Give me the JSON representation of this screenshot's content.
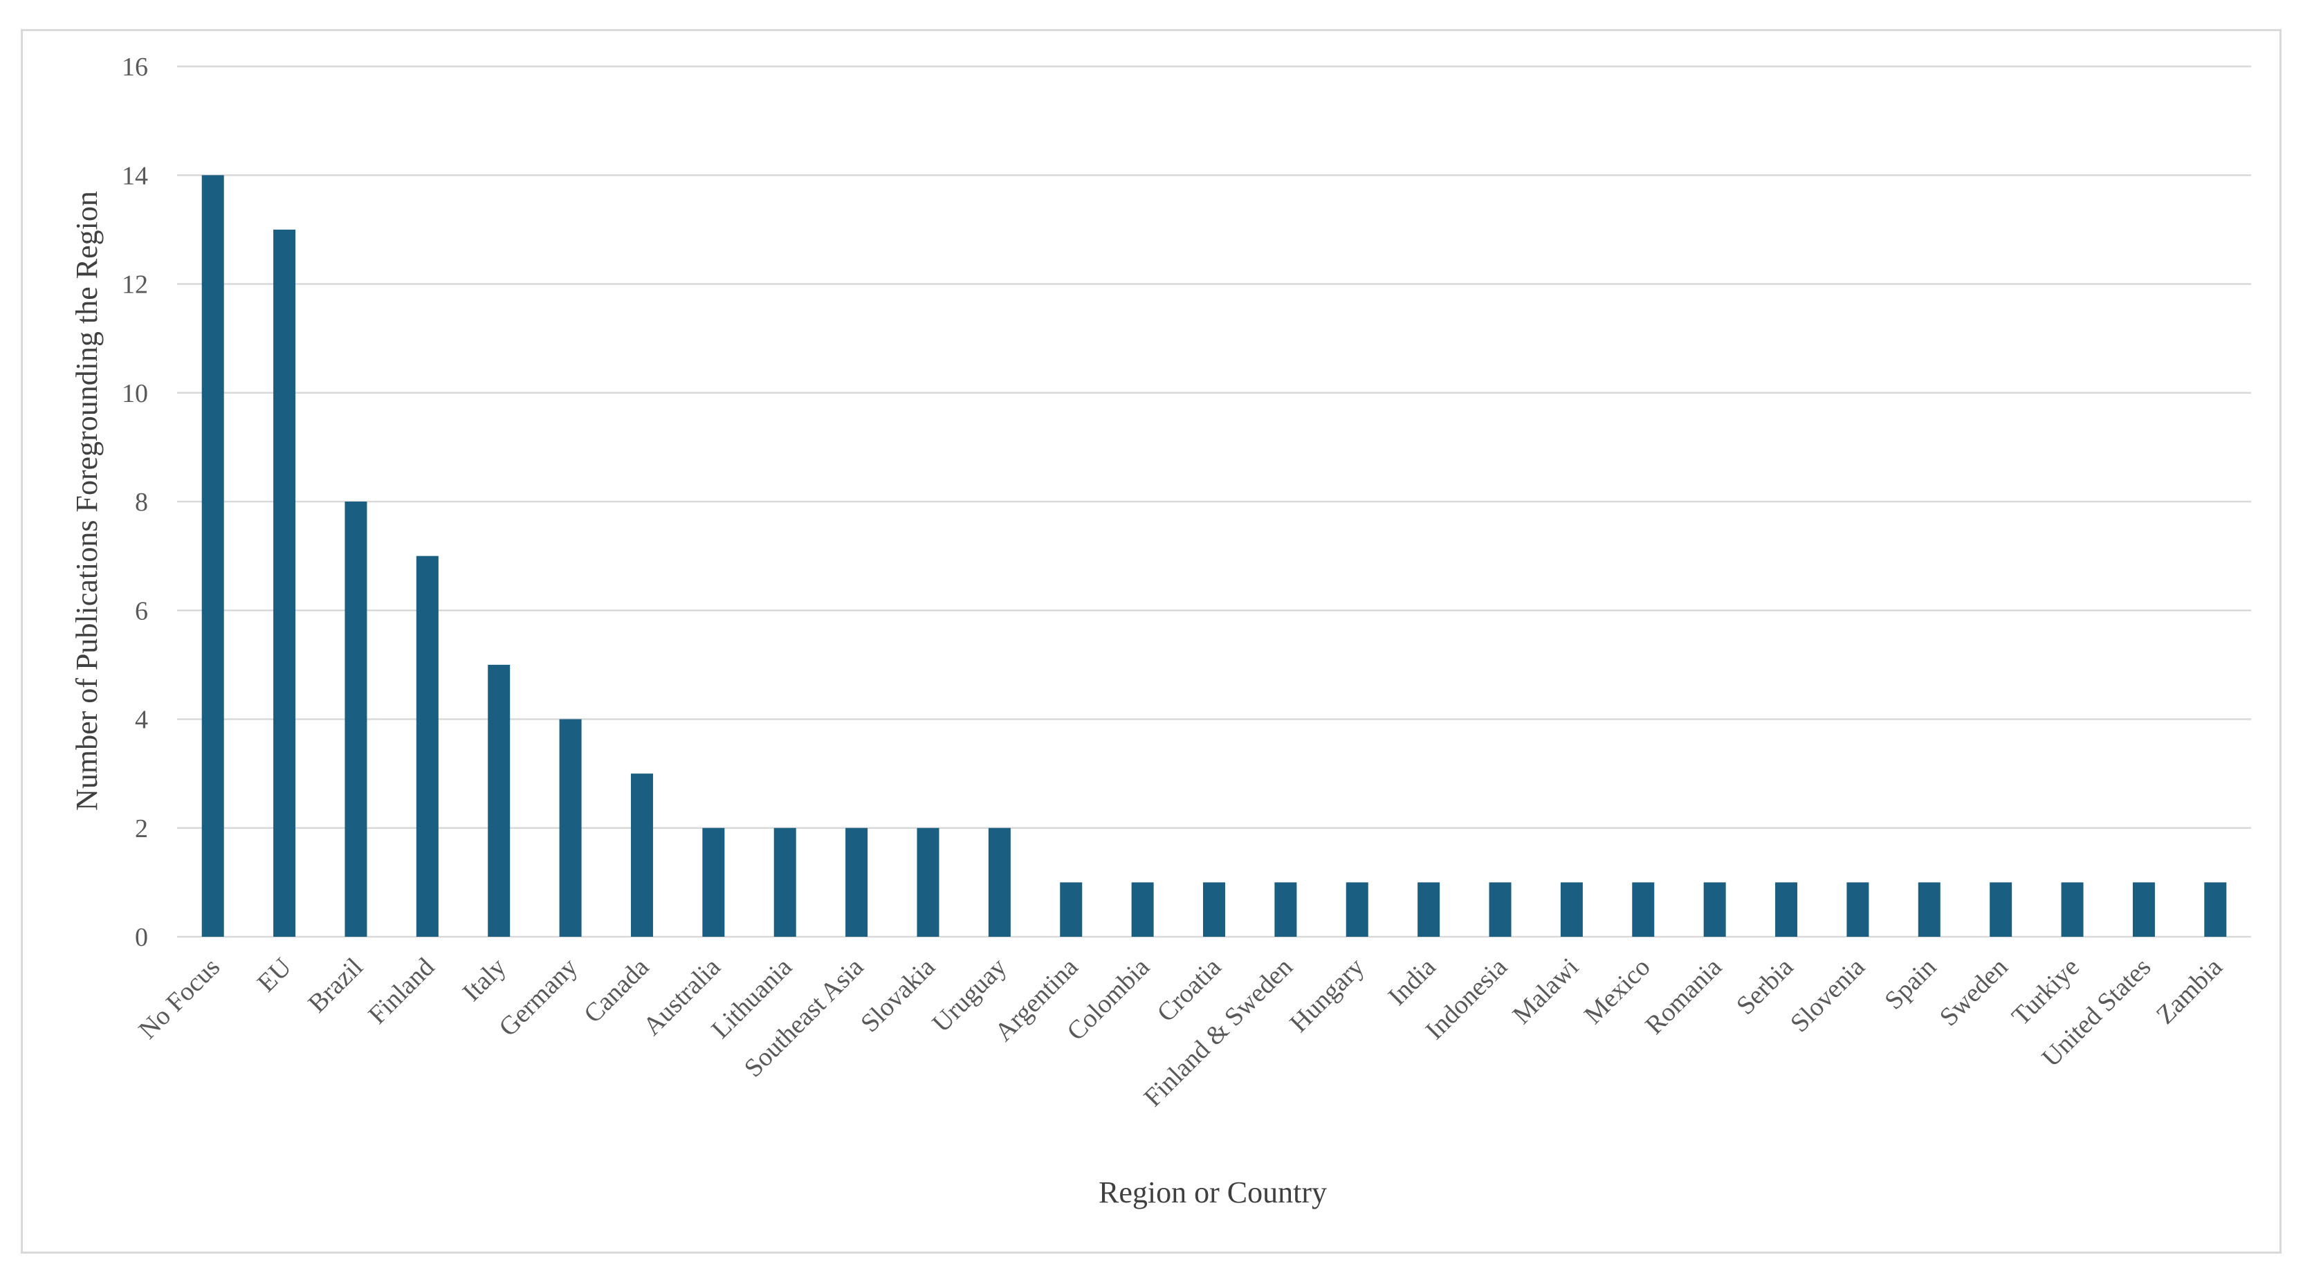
{
  "chart_data": {
    "type": "bar",
    "title": "",
    "xlabel": "Region or Country",
    "ylabel": "Number of Publications Foregrounding the Region",
    "ylim": [
      0,
      16
    ],
    "yticks": [
      "0",
      "2",
      "4",
      "6",
      "8",
      "10",
      "12",
      "14",
      "16"
    ],
    "grid": true,
    "legend": "none",
    "bar_color": "#1a5f82",
    "grid_color": "#d9d9d9",
    "categories": [
      "No Focus",
      "EU",
      "Brazil",
      "Finland",
      "Italy",
      "Germany",
      "Canada",
      "Australia",
      "Lithuania",
      "Southeast Asia",
      "Slovakia",
      "Uruguay",
      "Argentina",
      "Colombia",
      "Croatia",
      "Finland & Sweden",
      "Hungary",
      "India",
      "Indonesia",
      "Malawi",
      "Mexico",
      "Romania",
      "Serbia",
      "Slovenia",
      "Spain",
      "Sweden",
      "Turkiye",
      "United States",
      "Zambia"
    ],
    "values": [
      14,
      13,
      8,
      7,
      5,
      4,
      3,
      2,
      2,
      2,
      2,
      2,
      1,
      1,
      1,
      1,
      1,
      1,
      1,
      1,
      1,
      1,
      1,
      1,
      1,
      1,
      1,
      1,
      1
    ]
  }
}
